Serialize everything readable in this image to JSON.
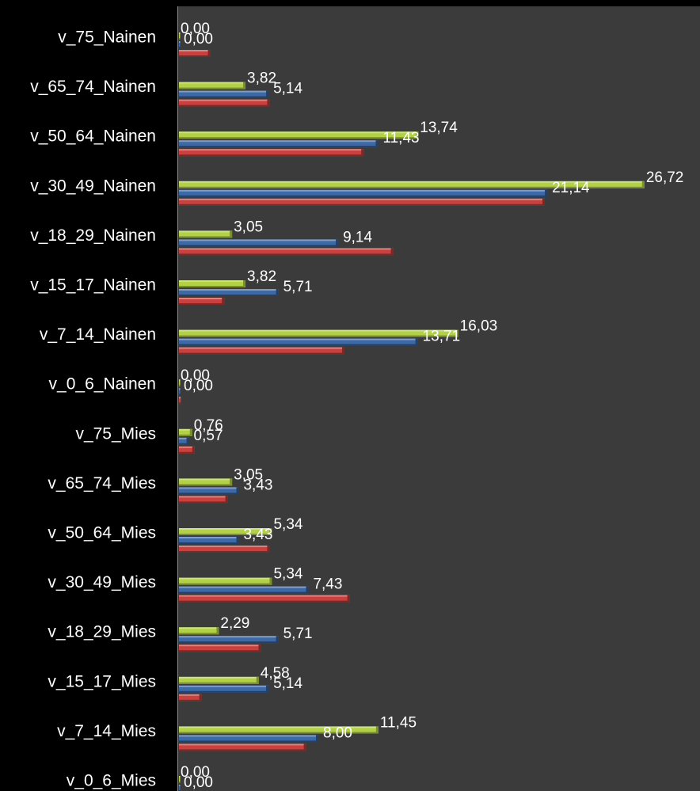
{
  "chart_data": {
    "type": "bar",
    "orientation": "horizontal",
    "title": "",
    "xlabel": "",
    "ylabel": "",
    "xlim": [
      0,
      28
    ],
    "grid": false,
    "legend": "none",
    "categories": [
      "v_75_Nainen",
      "v_65_74_Nainen",
      "v_50_64_Nainen",
      "v_30_49_Nainen",
      "v_18_29_Nainen",
      "v_15_17_Nainen",
      "v_7_14_Nainen",
      "v_0_6_Nainen",
      "v_75_Mies",
      "v_65_74_Mies",
      "v_50_64_Mies",
      "v_30_49_Mies",
      "v_18_29_Mies",
      "v_15_17_Mies",
      "v_7_14_Mies",
      "v_0_6_Mies"
    ],
    "series": [
      {
        "color": "#b2d147",
        "values": [
          0.0,
          3.82,
          13.74,
          26.72,
          3.05,
          3.82,
          16.03,
          0.0,
          0.76,
          3.05,
          5.34,
          5.34,
          2.29,
          4.58,
          11.45,
          0.0
        ],
        "labels": [
          "0,00",
          "3,82",
          "13,74",
          "26,72",
          "3,05",
          "3,82",
          "16,03",
          "0,00",
          "0,76",
          "3,05",
          "5,34",
          "5,34",
          "2,29",
          "4,58",
          "11,45",
          "0,00"
        ]
      },
      {
        "color": "#3d6aa6",
        "values": [
          0.0,
          5.14,
          11.43,
          21.14,
          9.14,
          5.71,
          13.71,
          0.0,
          0.57,
          3.43,
          3.43,
          7.43,
          5.71,
          5.14,
          8.0,
          0.0
        ],
        "labels": [
          "0,00",
          "5,14",
          "11,43",
          "21,14",
          "9,14",
          "5,71",
          "13,71",
          "0,00",
          "0,57",
          "3,43",
          "3,43",
          "7,43",
          "5,71",
          "5,14",
          "8,00",
          "0,00"
        ]
      },
      {
        "color": "#c9413e",
        "values": [
          1.8,
          5.2,
          10.6,
          21.0,
          12.3,
          2.6,
          9.5,
          0.1,
          0.9,
          2.8,
          5.2,
          9.8,
          4.7,
          1.3,
          7.3,
          0.1
        ],
        "labels": []
      }
    ]
  }
}
